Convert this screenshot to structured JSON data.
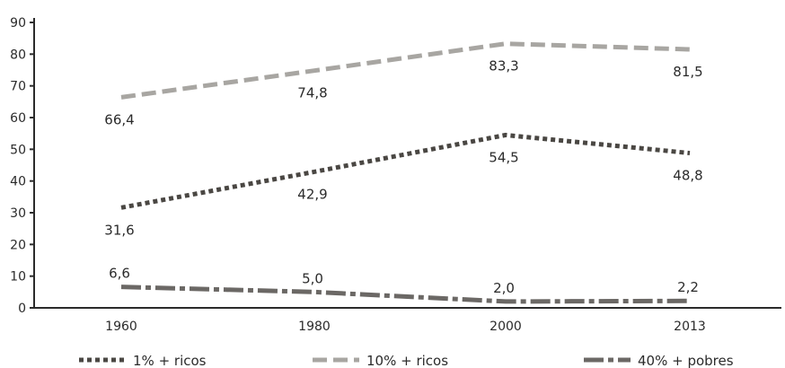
{
  "chart_data": {
    "type": "line",
    "title": "",
    "xlabel": "",
    "ylabel": "",
    "categories": [
      "1960",
      "1980",
      "2000",
      "2013"
    ],
    "ylim": [
      0,
      90
    ],
    "y_ticks": [
      0,
      10,
      20,
      30,
      40,
      50,
      60,
      70,
      80,
      90
    ],
    "grid": false,
    "legend_position": "bottom",
    "series": [
      {
        "name": "1% + ricos",
        "values": [
          31.6,
          42.9,
          54.5,
          48.8
        ],
        "labels": [
          "31,6",
          "42,9",
          "54,5",
          "48,8"
        ],
        "style": "dotted",
        "color": "#4a4743"
      },
      {
        "name": "10% + ricos",
        "values": [
          66.4,
          74.8,
          83.3,
          81.5
        ],
        "labels": [
          "66,4",
          "74,8",
          "83,3",
          "81,5"
        ],
        "style": "dashed",
        "color": "#a8a6a2"
      },
      {
        "name": "40% + pobres",
        "values": [
          6.6,
          5.0,
          2.0,
          2.2
        ],
        "labels": [
          "6,6",
          "5,0",
          "2,0",
          "2,2"
        ],
        "style": "dash-dot",
        "color": "#6b6865"
      }
    ]
  }
}
